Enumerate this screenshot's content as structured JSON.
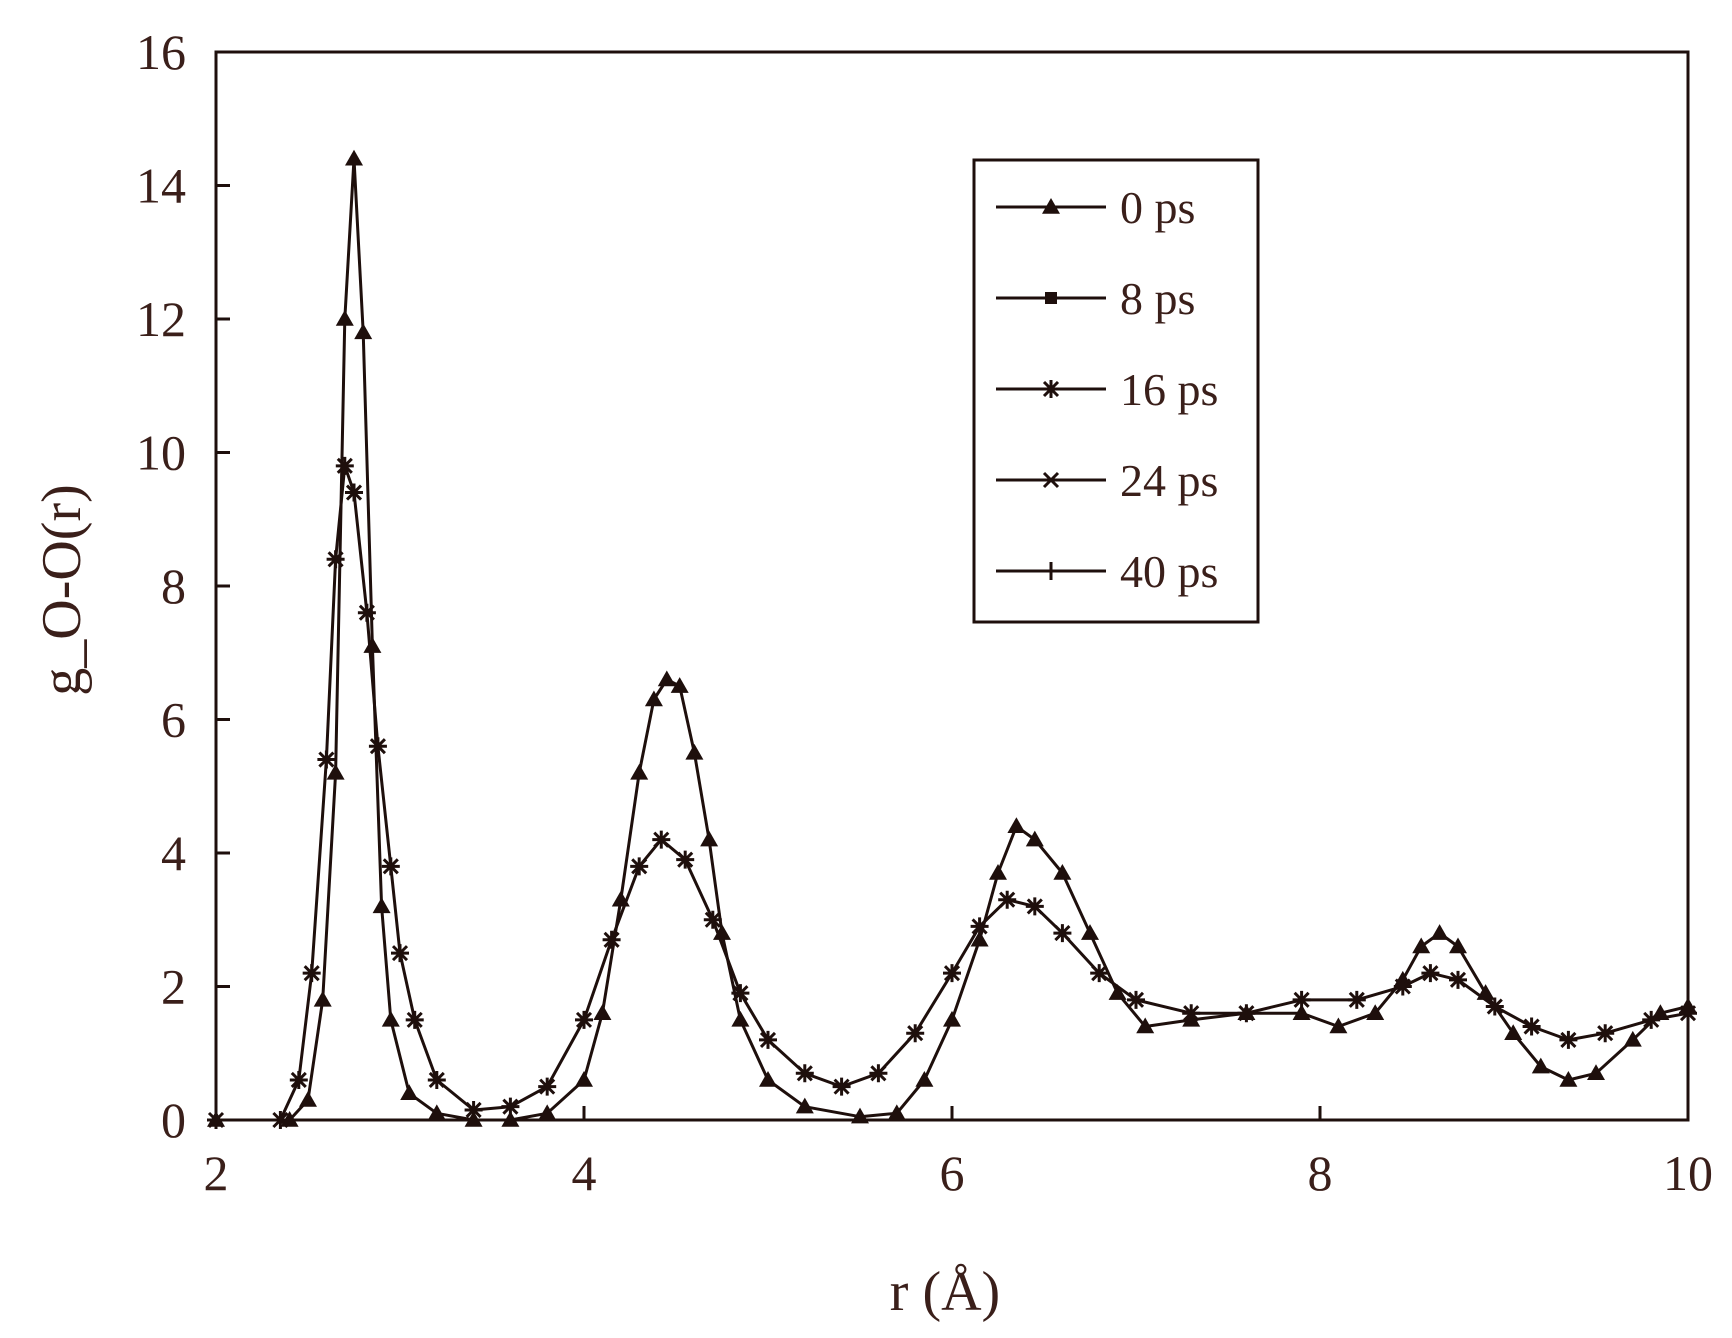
{
  "chart_data": {
    "type": "line",
    "title": "",
    "xlabel": "r (Å)",
    "ylabel": "g_O-O(r)",
    "xlim": [
      2,
      10
    ],
    "ylim": [
      0,
      16
    ],
    "x_ticks": [
      2,
      4,
      6,
      8,
      10
    ],
    "y_ticks": [
      0,
      2,
      4,
      6,
      8,
      10,
      12,
      14,
      16
    ],
    "grid": false,
    "legend_position": "top-right",
    "line_color": "#1e0f0c",
    "text_color": "#3a1f1a",
    "series": [
      {
        "name": "0 ps",
        "marker": "triangle",
        "points": [
          [
            2,
            0
          ],
          [
            2.4,
            0
          ],
          [
            2.5,
            0.3
          ],
          [
            2.58,
            1.8
          ],
          [
            2.65,
            5.2
          ],
          [
            2.7,
            12.0
          ],
          [
            2.75,
            14.4
          ],
          [
            2.8,
            11.8
          ],
          [
            2.85,
            7.1
          ],
          [
            2.9,
            3.2
          ],
          [
            2.95,
            1.5
          ],
          [
            3.05,
            0.4
          ],
          [
            3.2,
            0.1
          ],
          [
            3.4,
            0
          ],
          [
            3.6,
            0
          ],
          [
            3.8,
            0.1
          ],
          [
            4.0,
            0.6
          ],
          [
            4.1,
            1.6
          ],
          [
            4.2,
            3.3
          ],
          [
            4.3,
            5.2
          ],
          [
            4.38,
            6.3
          ],
          [
            4.45,
            6.6
          ],
          [
            4.52,
            6.5
          ],
          [
            4.6,
            5.5
          ],
          [
            4.68,
            4.2
          ],
          [
            4.75,
            2.8
          ],
          [
            4.85,
            1.5
          ],
          [
            5.0,
            0.6
          ],
          [
            5.2,
            0.2
          ],
          [
            5.5,
            0.05
          ],
          [
            5.7,
            0.1
          ],
          [
            5.85,
            0.6
          ],
          [
            6.0,
            1.5
          ],
          [
            6.15,
            2.7
          ],
          [
            6.25,
            3.7
          ],
          [
            6.35,
            4.4
          ],
          [
            6.45,
            4.2
          ],
          [
            6.6,
            3.7
          ],
          [
            6.75,
            2.8
          ],
          [
            6.9,
            1.9
          ],
          [
            7.05,
            1.4
          ],
          [
            7.3,
            1.5
          ],
          [
            7.6,
            1.6
          ],
          [
            7.9,
            1.6
          ],
          [
            8.1,
            1.4
          ],
          [
            8.3,
            1.6
          ],
          [
            8.45,
            2.1
          ],
          [
            8.55,
            2.6
          ],
          [
            8.65,
            2.8
          ],
          [
            8.75,
            2.6
          ],
          [
            8.9,
            1.9
          ],
          [
            9.05,
            1.3
          ],
          [
            9.2,
            0.8
          ],
          [
            9.35,
            0.6
          ],
          [
            9.5,
            0.7
          ],
          [
            9.7,
            1.2
          ],
          [
            9.85,
            1.6
          ],
          [
            10.0,
            1.7
          ]
        ]
      },
      {
        "name": "8 ps",
        "marker": "square",
        "points": []
      },
      {
        "name": "16 ps",
        "marker": "asterisk",
        "points": [
          [
            2,
            0
          ],
          [
            2.35,
            0
          ],
          [
            2.45,
            0.6
          ],
          [
            2.52,
            2.2
          ],
          [
            2.6,
            5.4
          ],
          [
            2.65,
            8.4
          ],
          [
            2.7,
            9.8
          ],
          [
            2.75,
            9.4
          ],
          [
            2.82,
            7.6
          ],
          [
            2.88,
            5.6
          ],
          [
            2.95,
            3.8
          ],
          [
            3.0,
            2.5
          ],
          [
            3.08,
            1.5
          ],
          [
            3.2,
            0.6
          ],
          [
            3.4,
            0.15
          ],
          [
            3.6,
            0.2
          ],
          [
            3.8,
            0.5
          ],
          [
            4.0,
            1.5
          ],
          [
            4.15,
            2.7
          ],
          [
            4.3,
            3.8
          ],
          [
            4.42,
            4.2
          ],
          [
            4.55,
            3.9
          ],
          [
            4.7,
            3.0
          ],
          [
            4.85,
            1.9
          ],
          [
            5.0,
            1.2
          ],
          [
            5.2,
            0.7
          ],
          [
            5.4,
            0.5
          ],
          [
            5.6,
            0.7
          ],
          [
            5.8,
            1.3
          ],
          [
            6.0,
            2.2
          ],
          [
            6.15,
            2.9
          ],
          [
            6.3,
            3.3
          ],
          [
            6.45,
            3.2
          ],
          [
            6.6,
            2.8
          ],
          [
            6.8,
            2.2
          ],
          [
            7.0,
            1.8
          ],
          [
            7.3,
            1.6
          ],
          [
            7.6,
            1.6
          ],
          [
            7.9,
            1.8
          ],
          [
            8.2,
            1.8
          ],
          [
            8.45,
            2.0
          ],
          [
            8.6,
            2.2
          ],
          [
            8.75,
            2.1
          ],
          [
            8.95,
            1.7
          ],
          [
            9.15,
            1.4
          ],
          [
            9.35,
            1.2
          ],
          [
            9.55,
            1.3
          ],
          [
            9.8,
            1.5
          ],
          [
            10.0,
            1.6
          ]
        ]
      },
      {
        "name": "24 ps",
        "marker": "cross",
        "points": []
      },
      {
        "name": "40 ps",
        "marker": "plus",
        "points": []
      }
    ]
  }
}
